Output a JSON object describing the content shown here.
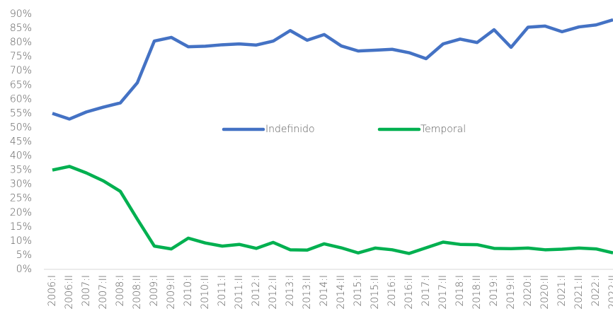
{
  "chart_data": {
    "type": "line",
    "categories": [
      "2006:I",
      "2006:II",
      "2007:I",
      "2007:II",
      "2008:I",
      "2008:II",
      "2009:I",
      "2009:II",
      "2010:I",
      "2010:II",
      "2011:I",
      "2011:II",
      "2012:I",
      "2012:II",
      "2013:I",
      "2013:II",
      "2014:I",
      "2014:II",
      "2015:I",
      "2015:II",
      "2016:I",
      "2016:II",
      "2017:I",
      "2017:II",
      "2018:I",
      "2018:II",
      "2019:I",
      "2019:II",
      "2020:I",
      "2020:II",
      "2021:I",
      "2021:II",
      "2022:I",
      "2022:II"
    ],
    "series": [
      {
        "name": "Indefinido",
        "color": "#4472c4",
        "values": [
          55,
          53,
          55.5,
          57.2,
          58.7,
          65.8,
          80.5,
          81.8,
          78.5,
          78.7,
          79.2,
          79.5,
          79.1,
          80.5,
          84.2,
          80.8,
          82.8,
          78.8,
          77,
          77.3,
          77.6,
          76.4,
          74.3,
          79.5,
          81.2,
          80,
          84.5,
          78.3,
          85.4,
          85.8,
          83.8,
          85.5,
          86.2,
          88
        ]
      },
      {
        "name": "Temporal",
        "color": "#00b050",
        "values": [
          35,
          36.3,
          34,
          31.2,
          27.5,
          17.7,
          8.2,
          7.2,
          11,
          9.3,
          8.2,
          8.8,
          7.4,
          9.5,
          6.9,
          6.8,
          9,
          7.6,
          5.8,
          7.5,
          6.9,
          5.6,
          7.6,
          9.6,
          8.8,
          8.7,
          7.4,
          7.3,
          7.5,
          6.9,
          7.1,
          7.5,
          7.2,
          5.8
        ]
      }
    ],
    "ylim": [
      0,
      90
    ],
    "yticks": [
      {
        "value": 0,
        "label": "0%"
      },
      {
        "value": 5,
        "label": "5%"
      },
      {
        "value": 10,
        "label": "10%"
      },
      {
        "value": 15,
        "label": "15%"
      },
      {
        "value": 20,
        "label": "20%"
      },
      {
        "value": 25,
        "label": "25%"
      },
      {
        "value": 30,
        "label": "30%"
      },
      {
        "value": 35,
        "label": "35%"
      },
      {
        "value": 40,
        "label": "40%"
      },
      {
        "value": 45,
        "label": "45%"
      },
      {
        "value": 50,
        "label": "50%"
      },
      {
        "value": 55,
        "label": "55%"
      },
      {
        "value": 60,
        "label": "60%"
      },
      {
        "value": 65,
        "label": "65%"
      },
      {
        "value": 70,
        "label": "70%"
      },
      {
        "value": 75,
        "label": "75%"
      },
      {
        "value": 80,
        "label": "80%"
      },
      {
        "value": 85,
        "label": "85%"
      },
      {
        "value": 90,
        "label": "90%"
      }
    ],
    "legend": "center"
  }
}
